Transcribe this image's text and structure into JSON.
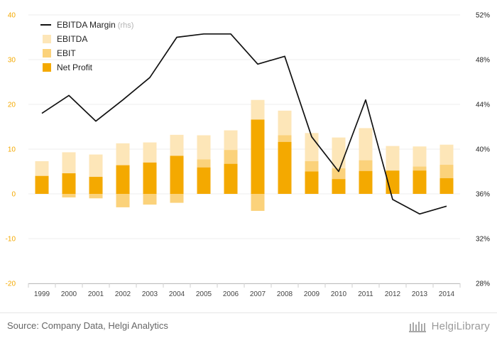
{
  "chart_data": {
    "type": "bar",
    "categories": [
      "1999",
      "2000",
      "2001",
      "2002",
      "2003",
      "2004",
      "2005",
      "2006",
      "2007",
      "2008",
      "2009",
      "2010",
      "2011",
      "2012",
      "2013",
      "2014"
    ],
    "series": [
      {
        "name": "EBITDA",
        "type": "bar",
        "axis": "left",
        "color": "#fde6b8",
        "values": [
          7.3,
          9.3,
          8.8,
          11.3,
          11.5,
          13.2,
          13.1,
          14.2,
          21.0,
          18.6,
          13.6,
          12.6,
          14.7,
          10.7,
          10.6,
          11.0
        ]
      },
      {
        "name": "EBIT",
        "type": "bar",
        "axis": "left",
        "color": "#fbd27b",
        "values": [
          4.0,
          -0.8,
          -1.0,
          -3.0,
          -2.4,
          -2.0,
          7.7,
          9.8,
          -3.8,
          13.1,
          7.3,
          5.7,
          7.5,
          5.0,
          6.1,
          6.5
        ]
      },
      {
        "name": "Net Profit",
        "type": "bar",
        "axis": "left",
        "color": "#f4a900",
        "values": [
          4.0,
          4.6,
          3.8,
          6.4,
          7.0,
          8.5,
          5.9,
          6.7,
          16.6,
          11.6,
          5.0,
          3.3,
          5.1,
          5.2,
          5.2,
          3.5
        ]
      },
      {
        "name": "EBITDA Margin",
        "name_suffix": "(rhs)",
        "type": "line",
        "axis": "right",
        "color": "#111111",
        "values": [
          43.2,
          44.8,
          42.5,
          44.4,
          46.4,
          50.0,
          50.3,
          50.3,
          47.6,
          48.3,
          41.1,
          38.0,
          44.4,
          35.5,
          34.2,
          34.9
        ]
      }
    ],
    "y_left": {
      "ylim": [
        -20,
        40
      ],
      "ticks": [
        -20,
        -10,
        0,
        10,
        20,
        30,
        40
      ]
    },
    "y_right": {
      "ylim": [
        28,
        52
      ],
      "ticks": [
        "28%",
        "32%",
        "36%",
        "40%",
        "44%",
        "48%",
        "52%"
      ]
    },
    "legend_order": [
      "EBITDA Margin",
      "EBITDA",
      "EBIT",
      "Net Profit"
    ],
    "legend_position": "top-left",
    "grid": true,
    "tick_color_left": "#f4a900",
    "tick_color_right": "#222222"
  },
  "footer": {
    "source": "Source: Company Data, Helgi Analytics",
    "brand": "HelgiLibrary"
  }
}
